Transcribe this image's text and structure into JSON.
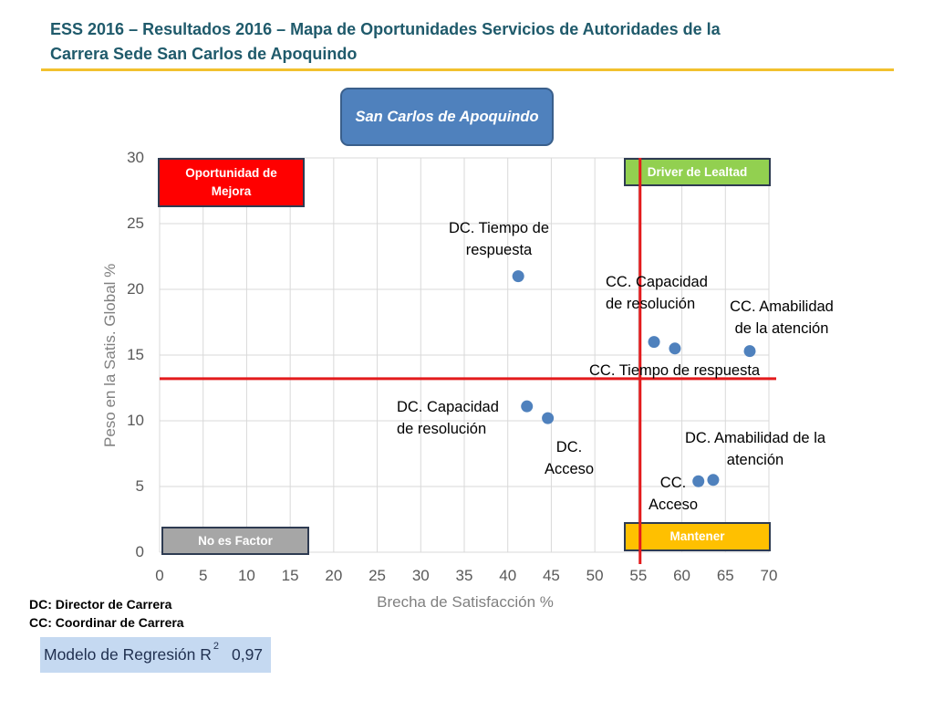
{
  "slide": {
    "title_lines": [
      "ESS 2016 – Resultados 2016 – Mapa de Oportunidades Servicios de Autoridades de la",
      "Carrera Sede San Carlos de Apoquindo"
    ],
    "footnotes": [
      "DC: Director de Carrera",
      "CC: Coordinar de Carrera"
    ],
    "regression": {
      "label": "Modelo de Regresión R",
      "superscript": "2",
      "value": "0,97"
    }
  },
  "colors": {
    "title": "#1f5a6b",
    "title_rule": "#f2c12e",
    "badge": "#4f81bd",
    "regression_box": "#c5d9f1"
  },
  "chart_data": {
    "type": "scatter",
    "title": "San Carlos de Apoquindo",
    "xlabel": "Brecha de Satisfacción %",
    "ylabel": "Peso en la Satis. Global %",
    "xlim": [
      0,
      70
    ],
    "ylim": [
      0,
      30
    ],
    "x_ticks": [
      0,
      5,
      10,
      15,
      20,
      25,
      30,
      35,
      40,
      45,
      50,
      55,
      60,
      65,
      70
    ],
    "y_ticks": [
      0,
      5,
      10,
      15,
      20,
      25,
      30
    ],
    "grid": true,
    "point_color": "#4f81bd",
    "points": [
      {
        "label": "DC. Tiempo de\nrespuesta",
        "x": 41.2,
        "y": 21.0
      },
      {
        "label": "CC. Capacidad\nde resolución",
        "x": 56.8,
        "y": 16.0
      },
      {
        "label": "CC. Tiempo de respuesta",
        "x": 59.2,
        "y": 15.5
      },
      {
        "label": "CC. Amabilidad\nde la atención",
        "x": 67.8,
        "y": 15.3
      },
      {
        "label": "DC. Capacidad\nde resolución",
        "x": 42.2,
        "y": 11.1
      },
      {
        "label": "DC.\nAcceso",
        "x": 44.6,
        "y": 10.2
      },
      {
        "label": "CC.\nAcceso",
        "x": 61.9,
        "y": 5.4
      },
      {
        "label": "DC. Amabilidad de la\natención",
        "x": 63.6,
        "y": 5.5
      }
    ],
    "reference_lines": [
      {
        "axis": "x",
        "value": 55.2,
        "color": "#e31a1c"
      },
      {
        "axis": "y",
        "value": 13.2,
        "color": "#e31a1c"
      }
    ],
    "quadrants": [
      {
        "position": "top-left",
        "label": "Oportunidad de\nMejora",
        "color": "#ff0000"
      },
      {
        "position": "top-right",
        "label": "Driver de Lealtad",
        "color": "#92d050"
      },
      {
        "position": "bottom-left",
        "label": "No es Factor",
        "color": "#a6a6a6"
      },
      {
        "position": "bottom-right",
        "label": "Mantener",
        "color": "#ffc000"
      }
    ]
  }
}
